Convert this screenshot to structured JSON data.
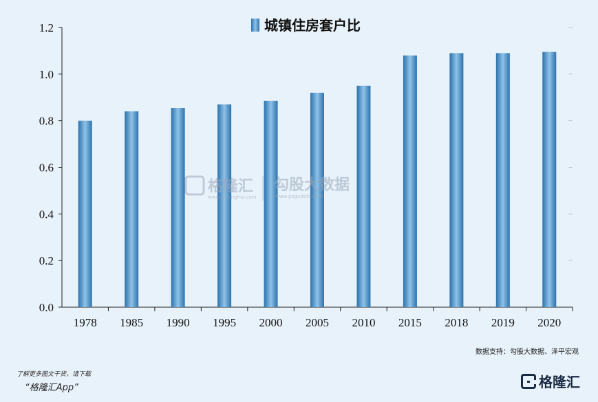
{
  "chart_data": {
    "type": "bar",
    "categories": [
      "1978",
      "1985",
      "1990",
      "1995",
      "2000",
      "2005",
      "2010",
      "2015",
      "2018",
      "2019",
      "2020"
    ],
    "series": [
      {
        "name": "城镇住房套户比",
        "values": [
          0.8,
          0.84,
          0.855,
          0.87,
          0.885,
          0.92,
          0.95,
          1.08,
          1.09,
          1.09,
          1.095
        ]
      }
    ],
    "ylim": [
      0,
      1.2
    ],
    "yticks": [
      "0.0",
      "0.2",
      "0.4",
      "0.6",
      "0.8",
      "1.0",
      "1.2"
    ],
    "ytick_values": [
      0,
      0.2,
      0.4,
      0.6,
      0.8,
      1.0,
      1.2
    ],
    "legend_position": "top-center",
    "grid": false,
    "bar_color": "#4a92c7"
  },
  "watermark": {
    "left": "格隆汇",
    "left_sub": "www.gelonghui.com",
    "right": "勾股大数据",
    "right_sub": "www.gogudata.com"
  },
  "source_text": "数据支持：勾股大数据、泽平宏观",
  "footer": {
    "line1": "了解更多图文干货，请下载",
    "line2": "“格隆汇App”"
  },
  "logo": {
    "text": "格隆汇",
    "icon": "gelonghui-logo-icon"
  }
}
